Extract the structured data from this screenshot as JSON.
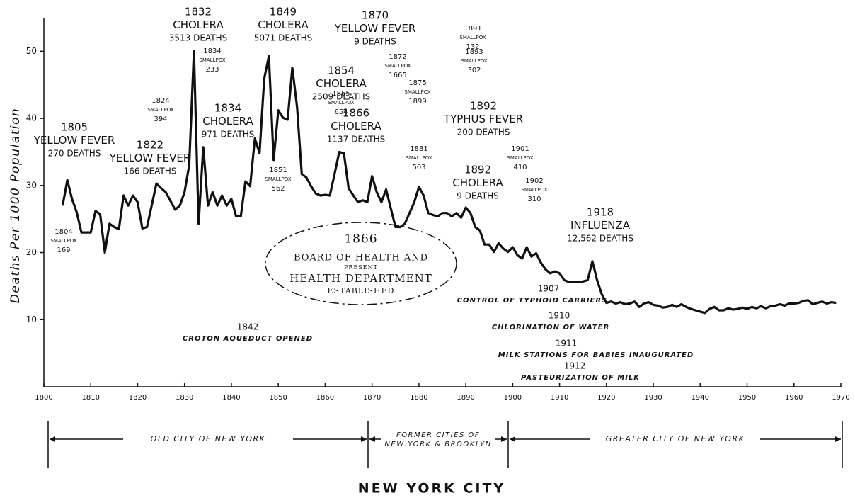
{
  "chart_data": {
    "type": "line",
    "title": "NEW YORK CITY",
    "y_label": "Deaths Per 1000 Population",
    "xlim": [
      1800,
      1970
    ],
    "ylim": [
      0,
      55
    ],
    "xticks": [
      1800,
      1810,
      1820,
      1830,
      1840,
      1850,
      1860,
      1870,
      1880,
      1890,
      1900,
      1910,
      1920,
      1930,
      1940,
      1950,
      1960,
      1970
    ],
    "yticks": [
      10,
      20,
      30,
      40,
      50
    ],
    "color": "#111111",
    "x": [
      1804,
      1805,
      1806,
      1807,
      1808,
      1809,
      1810,
      1811,
      1812,
      1813,
      1814,
      1815,
      1816,
      1817,
      1818,
      1819,
      1820,
      1821,
      1822,
      1823,
      1824,
      1825,
      1826,
      1827,
      1828,
      1829,
      1830,
      1831,
      1832,
      1833,
      1834,
      1835,
      1836,
      1837,
      1838,
      1839,
      1840,
      1841,
      1842,
      1843,
      1844,
      1845,
      1846,
      1847,
      1848,
      1849,
      1850,
      1851,
      1852,
      1853,
      1854,
      1855,
      1856,
      1857,
      1858,
      1859,
      1860,
      1861,
      1862,
      1863,
      1864,
      1865,
      1866,
      1867,
      1868,
      1869,
      1870,
      1871,
      1872,
      1873,
      1874,
      1875,
      1876,
      1877,
      1878,
      1879,
      1880,
      1881,
      1882,
      1883,
      1884,
      1885,
      1886,
      1887,
      1888,
      1889,
      1890,
      1891,
      1892,
      1893,
      1894,
      1895,
      1896,
      1897,
      1898,
      1899,
      1900,
      1901,
      1902,
      1903,
      1904,
      1905,
      1906,
      1907,
      1908,
      1909,
      1910,
      1911,
      1912,
      1913,
      1914,
      1915,
      1916,
      1917,
      1918,
      1919,
      1920,
      1921,
      1922,
      1923,
      1924,
      1925,
      1926,
      1927,
      1928,
      1929,
      1930,
      1931,
      1932,
      1933,
      1934,
      1935,
      1936,
      1937,
      1938,
      1939,
      1940,
      1941,
      1942,
      1943,
      1944,
      1945,
      1946,
      1947,
      1948,
      1949,
      1950,
      1951,
      1952,
      1953,
      1954,
      1955,
      1956,
      1957,
      1958,
      1959,
      1960,
      1961,
      1962,
      1963,
      1964,
      1965,
      1966,
      1967,
      1968,
      1969
    ],
    "values": [
      27,
      30.8,
      28,
      26,
      23,
      23,
      23,
      26.2,
      25.7,
      20,
      24.3,
      23.8,
      23.5,
      28.5,
      27,
      28.5,
      27.5,
      23.6,
      23.8,
      27,
      30.3,
      29.6,
      29,
      27.7,
      26.4,
      27,
      29,
      33,
      50,
      24.3,
      35.7,
      27,
      29,
      27,
      28.5,
      27,
      28,
      25.4,
      25.4,
      30.6,
      29.9,
      37,
      34.8,
      45.9,
      49.3,
      33.8,
      41.2,
      40.1,
      39.8,
      47.5,
      41.7,
      31.7,
      31.2,
      29.9,
      28.8,
      28.5,
      28.6,
      28.5,
      31.7,
      35,
      34.8,
      29.6,
      28.5,
      27.5,
      27.8,
      27.5,
      31.4,
      29,
      27.5,
      29.4,
      26.6,
      23.8,
      23.8,
      24.3,
      25.9,
      27.5,
      29.8,
      28.5,
      25.9,
      25.6,
      25.4,
      25.9,
      25.9,
      25.4,
      25.9,
      25.2,
      26.7,
      25.9,
      23.8,
      23.3,
      21.2,
      21.2,
      20.1,
      21.4,
      20.6,
      20.1,
      20.8,
      19.6,
      19.1,
      20.8,
      19.4,
      19.9,
      18.5,
      17.5,
      16.9,
      17.2,
      16.9,
      15.9,
      15.6,
      15.6,
      15.6,
      15.7,
      15.9,
      18.7,
      15.9,
      13.8,
      12.5,
      12.7,
      12.4,
      12.6,
      12.3,
      12.4,
      12.7,
      11.9,
      12.4,
      12.6,
      12.2,
      12.1,
      11.8,
      11.9,
      12.2,
      11.9,
      12.3,
      11.9,
      11.6,
      11.4,
      11.2,
      11.0,
      11.6,
      11.9,
      11.4,
      11.4,
      11.7,
      11.5,
      11.6,
      11.8,
      11.6,
      11.9,
      11.7,
      12.0,
      11.7,
      12.0,
      12.1,
      12.3,
      12.1,
      12.4,
      12.4,
      12.5,
      12.8,
      12.9,
      12.3,
      12.5,
      12.7,
      12.4,
      12.6,
      12.5
    ],
    "annotations": [
      [
        "1805",
        "YELLOW FEVER",
        "270 DEATHS"
      ],
      [
        "1804",
        "SMALLPOX",
        "169"
      ],
      [
        "1822",
        "YELLOW FEVER",
        "166 DEATHS"
      ],
      [
        "1824",
        "SMALLPOX",
        "394"
      ],
      [
        "1832",
        "CHOLERA",
        "3513 DEATHS"
      ],
      [
        "1834",
        "SMALLPOX",
        "233"
      ],
      [
        "1834",
        "CHOLERA",
        "971 DEATHS"
      ],
      [
        "1849",
        "CHOLERA",
        "5071 DEATHS"
      ],
      [
        "1854",
        "CHOLERA",
        "2509 DEATHS"
      ],
      [
        "1851",
        "SMALLPOX",
        "562"
      ],
      [
        "1865",
        "SMALLPOX",
        "654"
      ],
      [
        "1866",
        "CHOLERA",
        "1137 DEATHS"
      ],
      [
        "1870",
        "YELLOW FEVER",
        "9 DEATHS"
      ],
      [
        "1872",
        "SMALLPOX",
        "1665"
      ],
      [
        "1875",
        "SMALLPOX",
        "1899"
      ],
      [
        "1881",
        "SMALLPOX",
        "503"
      ],
      [
        "1891",
        "SMALLPOX",
        "132"
      ],
      [
        "1893",
        "SMALLPOX",
        "302"
      ],
      [
        "1892",
        "TYPHUS FEVER",
        "200 DEATHS"
      ],
      [
        "1892",
        "CHOLERA",
        "9 DEATHS"
      ],
      [
        "1901",
        "SMALLPOX",
        "410"
      ],
      [
        "1902",
        "SMALLPOX",
        "310"
      ],
      [
        "1918",
        "INFLUENZA",
        "12,562 DEATHS"
      ],
      [
        "1907",
        "CONTROL OF TYPHOID CARRIERS"
      ],
      [
        "1910",
        "CHLORINATION OF WATER"
      ],
      [
        "1911",
        "MILK STATIONS FOR BABIES INAUGURATED"
      ],
      [
        "1912",
        "PASTEURIZATION OF MILK"
      ],
      [
        "1842",
        "CROTON AQUEDUCT OPENED"
      ],
      [
        "1866",
        "BOARD OF HEALTH AND",
        "PRESENT",
        "HEALTH DEPARTMENT",
        "ESTABLISHED"
      ]
    ],
    "periods": [
      [
        "OLD CITY OF NEW YORK"
      ],
      [
        "FORMER CITIES OF",
        "NEW YORK & BROOKLYN"
      ],
      [
        "GREATER CITY OF NEW YORK"
      ]
    ]
  }
}
